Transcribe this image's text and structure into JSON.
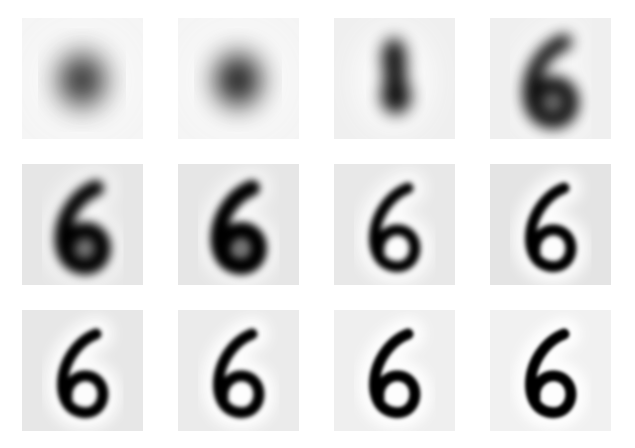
{
  "figure": {
    "rows": 3,
    "cols": 4,
    "subject": "digit-6-reconstruction-progression",
    "ink_color": "#000000",
    "tiles": [
      {
        "index": 1,
        "stage": 1,
        "background": "#f4f4f4",
        "appearance": "round-blob",
        "blur": 15,
        "ink_opacity": 0.9
      },
      {
        "index": 2,
        "stage": 2,
        "background": "#f4f4f4",
        "appearance": "round-blob",
        "blur": 14,
        "ink_opacity": 0.95
      },
      {
        "index": 3,
        "stage": 3,
        "background": "#efefef",
        "appearance": "vertical-blob",
        "blur": 8,
        "ink_opacity": 0.95
      },
      {
        "index": 4,
        "stage": 4,
        "background": "#efefef",
        "appearance": "rough-six",
        "blur": 7,
        "ink_opacity": 0.95
      },
      {
        "index": 5,
        "stage": 5,
        "background": "#e6e6e6",
        "appearance": "rough-six",
        "blur": 5,
        "ink_opacity": 1
      },
      {
        "index": 6,
        "stage": 6,
        "background": "#e6e6e6",
        "appearance": "rough-six",
        "blur": 4,
        "ink_opacity": 1
      },
      {
        "index": 7,
        "stage": 7,
        "background": "#e8e8e8",
        "appearance": "six",
        "blur": 3,
        "ink_opacity": 1
      },
      {
        "index": 8,
        "stage": 8,
        "background": "#e4e4e4",
        "appearance": "six",
        "blur": 2.5,
        "ink_opacity": 1
      },
      {
        "index": 9,
        "stage": 9,
        "background": "#e7e7e7",
        "appearance": "six",
        "blur": 2.2,
        "ink_opacity": 1
      },
      {
        "index": 10,
        "stage": 10,
        "background": "#ebebeb",
        "appearance": "six",
        "blur": 2,
        "ink_opacity": 1
      },
      {
        "index": 11,
        "stage": 11,
        "background": "#efefef",
        "appearance": "six",
        "blur": 1.8,
        "ink_opacity": 1
      },
      {
        "index": 12,
        "stage": 12,
        "background": "#f1f1f1",
        "appearance": "six",
        "blur": 1.6,
        "ink_opacity": 1
      }
    ]
  }
}
